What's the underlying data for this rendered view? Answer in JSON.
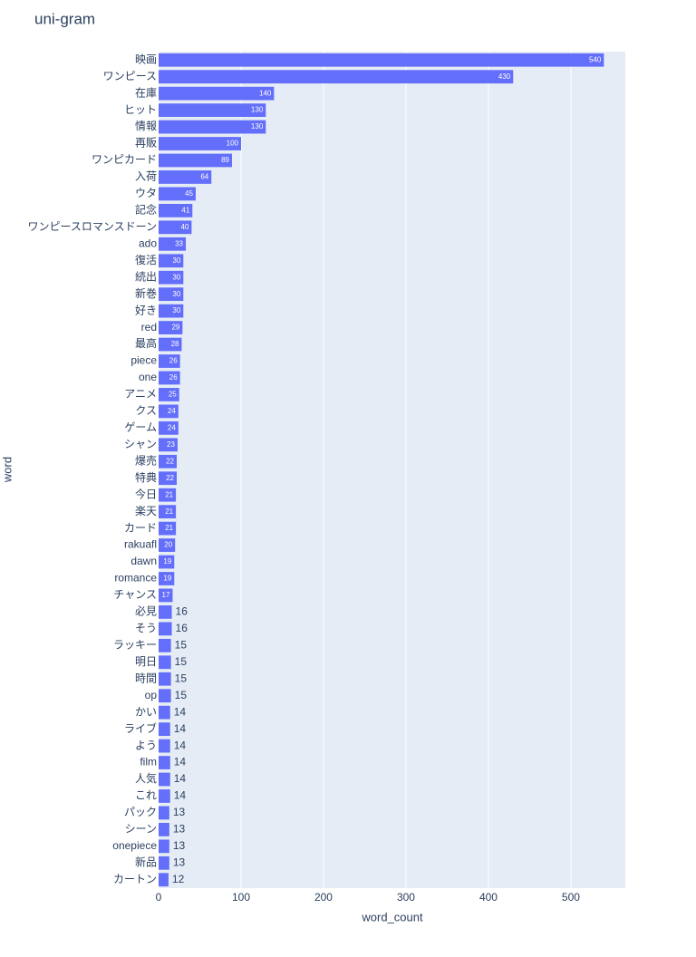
{
  "chart_data": {
    "type": "bar",
    "orientation": "horizontal",
    "title": "uni-gram",
    "x_label": "word_count",
    "y_label": "word",
    "color": "#636efa",
    "grid": true,
    "categories": [
      "映画",
      "ワンピース",
      "在庫",
      "ヒット",
      "情報",
      "再販",
      "ワンピカード",
      "入荷",
      "ウタ",
      "記念",
      "ワンピースロマンスドーン",
      "ado",
      "復活",
      "続出",
      "新巻",
      "好き",
      "red",
      "最高",
      "piece",
      "one",
      "アニメ",
      "クス",
      "ゲーム",
      "シャン",
      "爆売",
      "特典",
      "今日",
      "楽天",
      "カード",
      "rakuafl",
      "dawn",
      "romance",
      "チャンス",
      "必見",
      "そう",
      "ラッキー",
      "明日",
      "時間",
      "op",
      "かい",
      "ライブ",
      "よう",
      "film",
      "人気",
      "これ",
      "パック",
      "シーン",
      "onepiece",
      "新品",
      "カートン"
    ],
    "values": [
      540,
      430,
      140,
      130,
      130,
      100,
      89,
      64,
      45,
      41,
      40,
      33,
      30,
      30,
      30,
      30,
      29,
      28,
      26,
      26,
      25,
      24,
      24,
      23,
      22,
      22,
      21,
      21,
      21,
      20,
      19,
      19,
      17,
      16,
      16,
      15,
      15,
      15,
      15,
      14,
      14,
      14,
      14,
      14,
      14,
      13,
      13,
      13,
      13,
      12
    ],
    "xlim": [
      0,
      566
    ],
    "xticks": [
      0,
      100,
      200,
      300,
      400,
      500
    ]
  }
}
